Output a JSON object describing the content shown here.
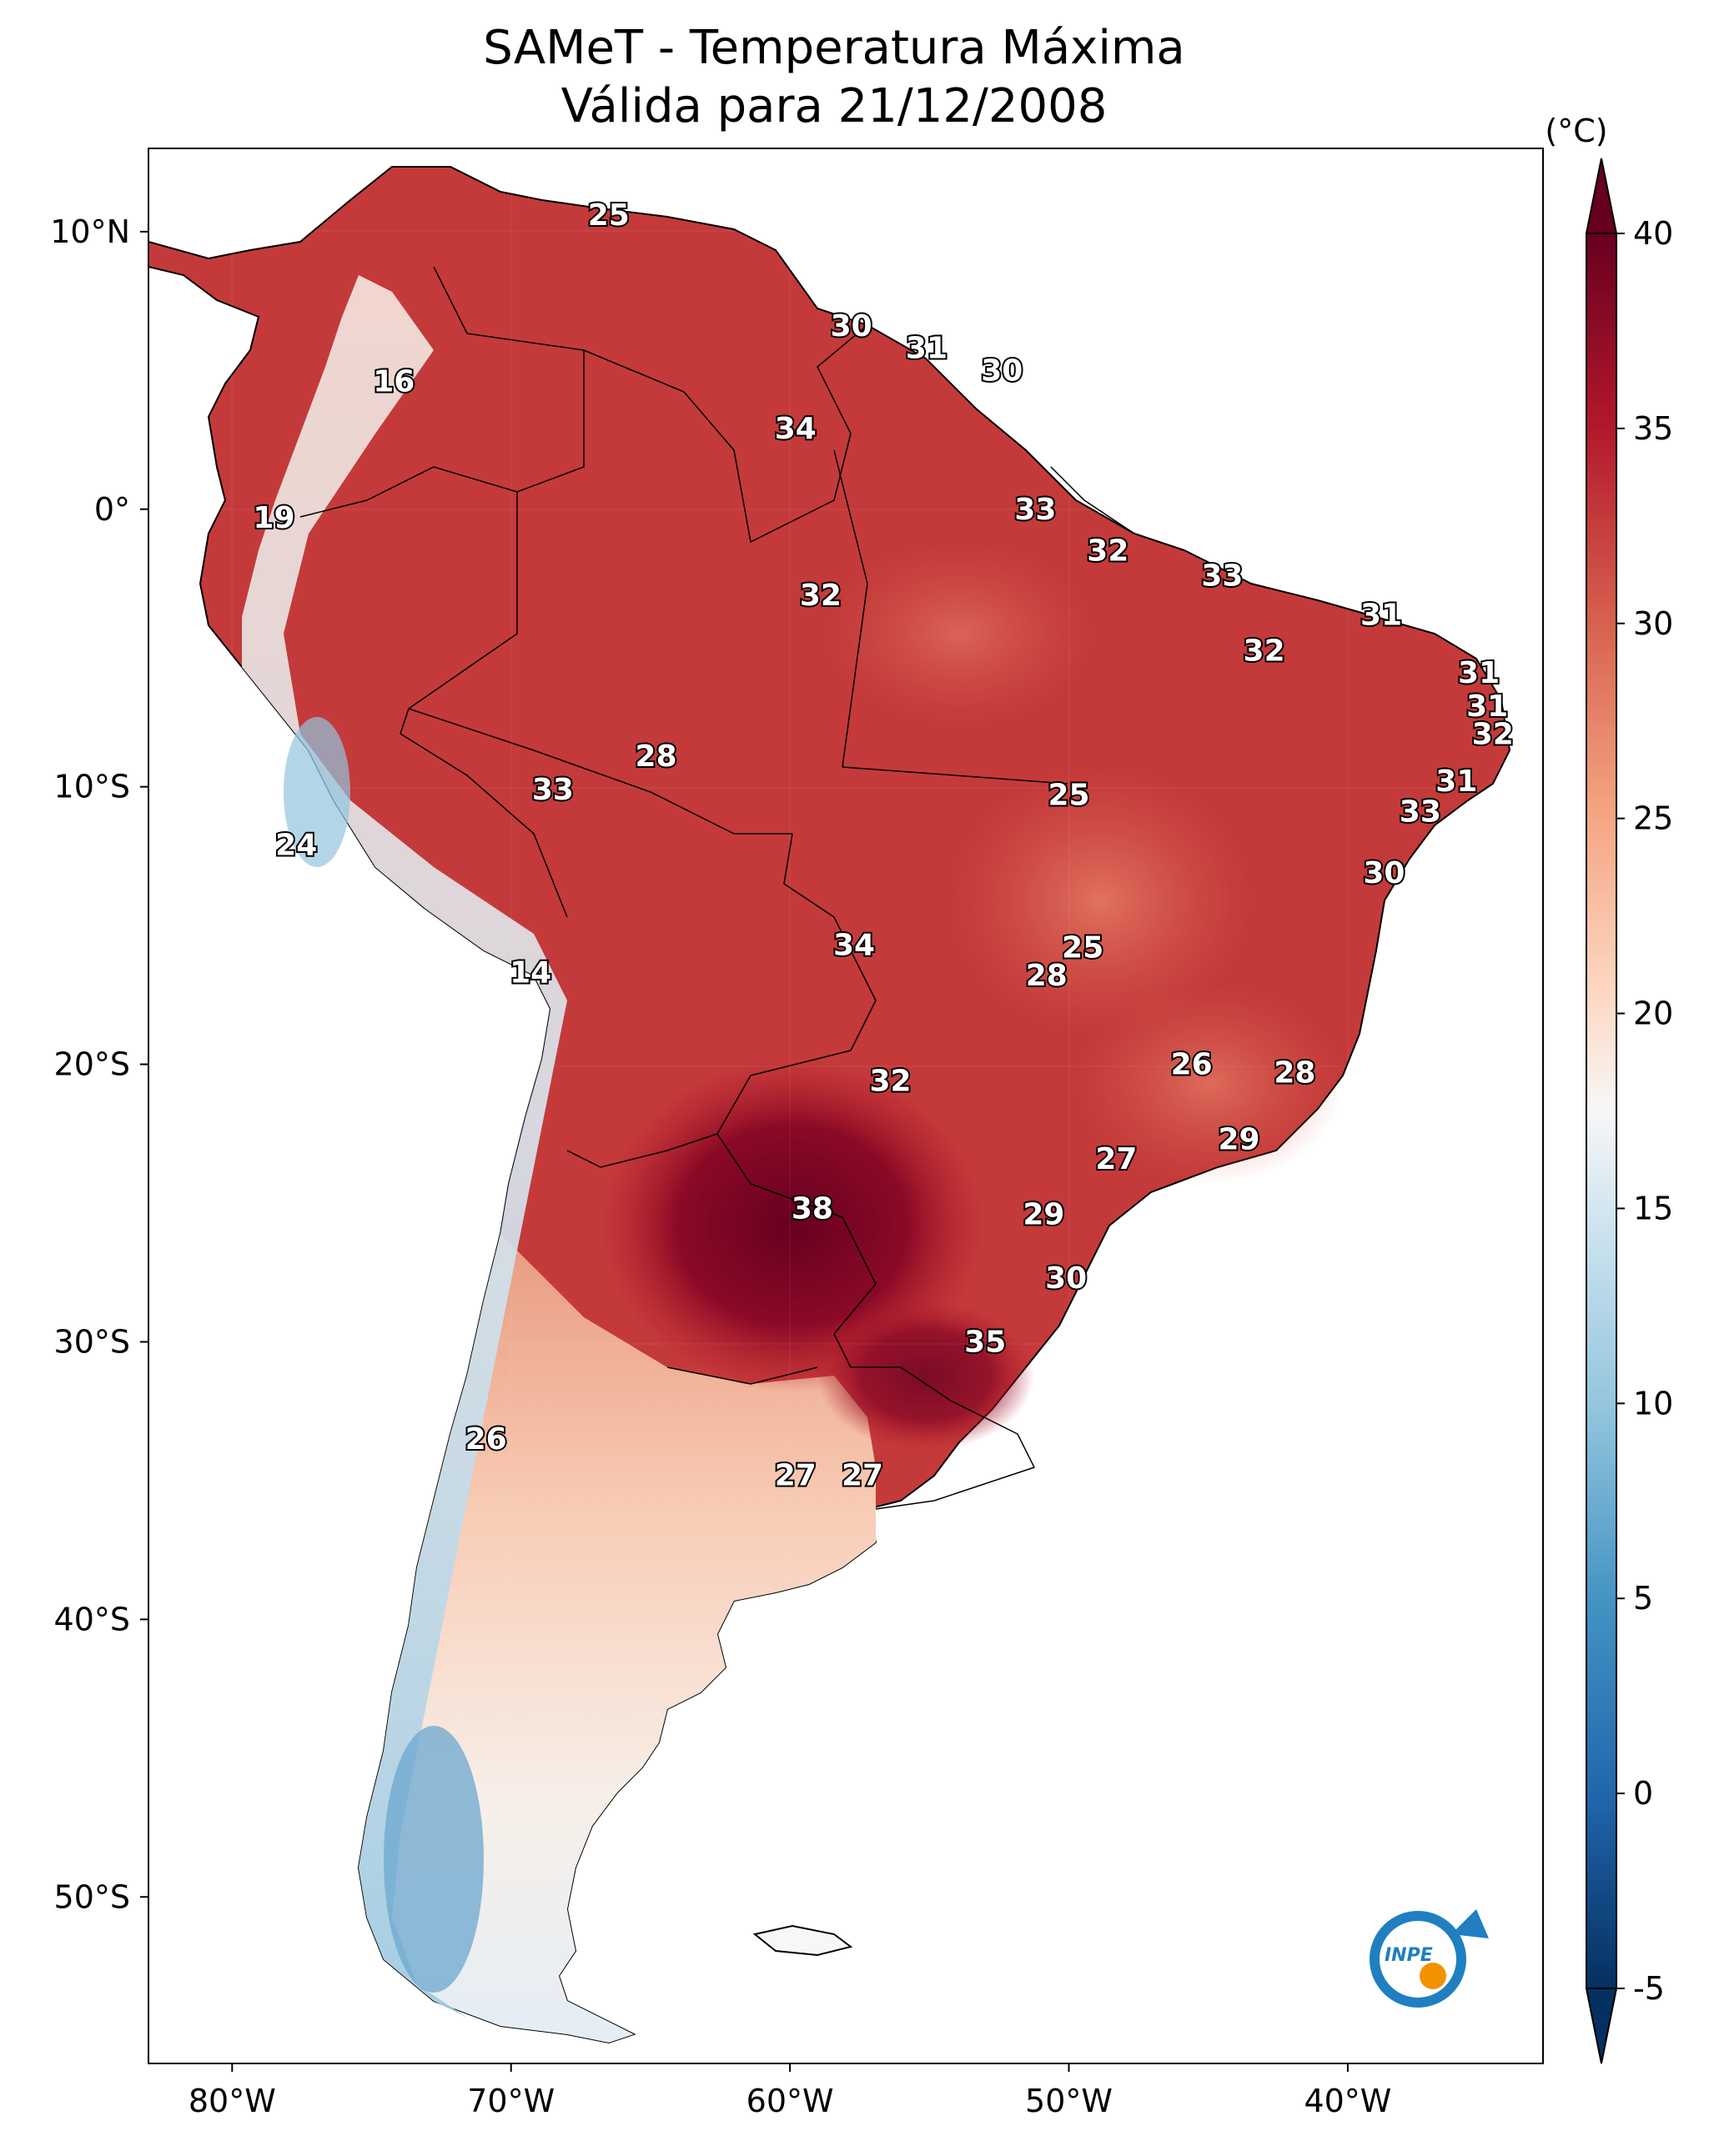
{
  "title_line1": "SAMeT - Temperatura Máxima",
  "title_line2": "Válida para 21/12/2008",
  "colorbar": {
    "unit_label": "(°C)",
    "ticks": [
      "40",
      "35",
      "30",
      "25",
      "20",
      "15",
      "10",
      "5",
      "0",
      "-5"
    ],
    "tick_values": [
      40,
      35,
      30,
      25,
      20,
      15,
      10,
      5,
      0,
      -5
    ],
    "min": -5,
    "max": 40,
    "colormap": "RdBu_r",
    "colors": [
      "#053061",
      "#2166ac",
      "#4393c3",
      "#92c5de",
      "#d1e5f0",
      "#f7f7f7",
      "#fddbc7",
      "#f4a582",
      "#d6604d",
      "#b2182b",
      "#67001f"
    ]
  },
  "lat_ticks": [
    "10°N",
    "0°",
    "10°S",
    "20°S",
    "30°S",
    "40°S",
    "50°S"
  ],
  "lat_values": [
    10,
    0,
    -10,
    -20,
    -30,
    -40,
    -50
  ],
  "lon_ticks": [
    "80°W",
    "70°W",
    "60°W",
    "50°W",
    "40°W"
  ],
  "lon_values": [
    -80,
    -70,
    -60,
    -50,
    -40
  ],
  "map_extent": {
    "lon": [
      -83,
      -33
    ],
    "lat": [
      -56,
      13
    ]
  },
  "contour_labels": [
    {
      "text": "25",
      "lon": -66.5,
      "lat": 10.6
    },
    {
      "text": "16",
      "lon": -74.2,
      "lat": 4.6
    },
    {
      "text": "19",
      "lon": -78.5,
      "lat": -0.3
    },
    {
      "text": "30",
      "lon": -57.8,
      "lat": 6.6
    },
    {
      "text": "31",
      "lon": -55.1,
      "lat": 5.8
    },
    {
      "text": "30",
      "lon": -52.4,
      "lat": 5.0
    },
    {
      "text": "34",
      "lon": -59.8,
      "lat": 2.9
    },
    {
      "text": "33",
      "lon": -51.2,
      "lat": 0.0
    },
    {
      "text": "32",
      "lon": -48.6,
      "lat": -1.5
    },
    {
      "text": "33",
      "lon": -44.5,
      "lat": -2.4
    },
    {
      "text": "32",
      "lon": -58.9,
      "lat": -3.1
    },
    {
      "text": "31",
      "lon": -38.8,
      "lat": -3.8
    },
    {
      "text": "32",
      "lon": -43.0,
      "lat": -5.1
    },
    {
      "text": "31",
      "lon": -35.3,
      "lat": -5.9
    },
    {
      "text": "31",
      "lon": -35.0,
      "lat": -7.1
    },
    {
      "text": "32",
      "lon": -34.8,
      "lat": -8.1
    },
    {
      "text": "31",
      "lon": -36.1,
      "lat": -9.8
    },
    {
      "text": "33",
      "lon": -37.4,
      "lat": -10.9
    },
    {
      "text": "30",
      "lon": -38.7,
      "lat": -13.1
    },
    {
      "text": "28",
      "lon": -64.8,
      "lat": -8.9
    },
    {
      "text": "33",
      "lon": -68.5,
      "lat": -10.1
    },
    {
      "text": "25",
      "lon": -50.0,
      "lat": -10.3
    },
    {
      "text": "24",
      "lon": -77.7,
      "lat": -12.1
    },
    {
      "text": "34",
      "lon": -57.7,
      "lat": -15.7
    },
    {
      "text": "25",
      "lon": -49.5,
      "lat": -15.8
    },
    {
      "text": "28",
      "lon": -50.8,
      "lat": -16.8
    },
    {
      "text": "14",
      "lon": -69.3,
      "lat": -16.7
    },
    {
      "text": "26",
      "lon": -45.6,
      "lat": -20.0
    },
    {
      "text": "28",
      "lon": -41.9,
      "lat": -20.3
    },
    {
      "text": "32",
      "lon": -56.4,
      "lat": -20.6
    },
    {
      "text": "29",
      "lon": -43.9,
      "lat": -22.7
    },
    {
      "text": "27",
      "lon": -48.3,
      "lat": -23.4
    },
    {
      "text": "38",
      "lon": -59.2,
      "lat": -25.2
    },
    {
      "text": "29",
      "lon": -50.9,
      "lat": -25.4
    },
    {
      "text": "30",
      "lon": -50.1,
      "lat": -27.7
    },
    {
      "text": "35",
      "lon": -53.0,
      "lat": -30.0
    },
    {
      "text": "26",
      "lon": -70.9,
      "lat": -33.5
    },
    {
      "text": "27",
      "lon": -59.8,
      "lat": -34.8
    },
    {
      "text": "27",
      "lon": -57.4,
      "lat": -34.8
    }
  ],
  "logo": {
    "text": "INPE",
    "colors": [
      "#1f7fc0",
      "#f39200"
    ]
  }
}
